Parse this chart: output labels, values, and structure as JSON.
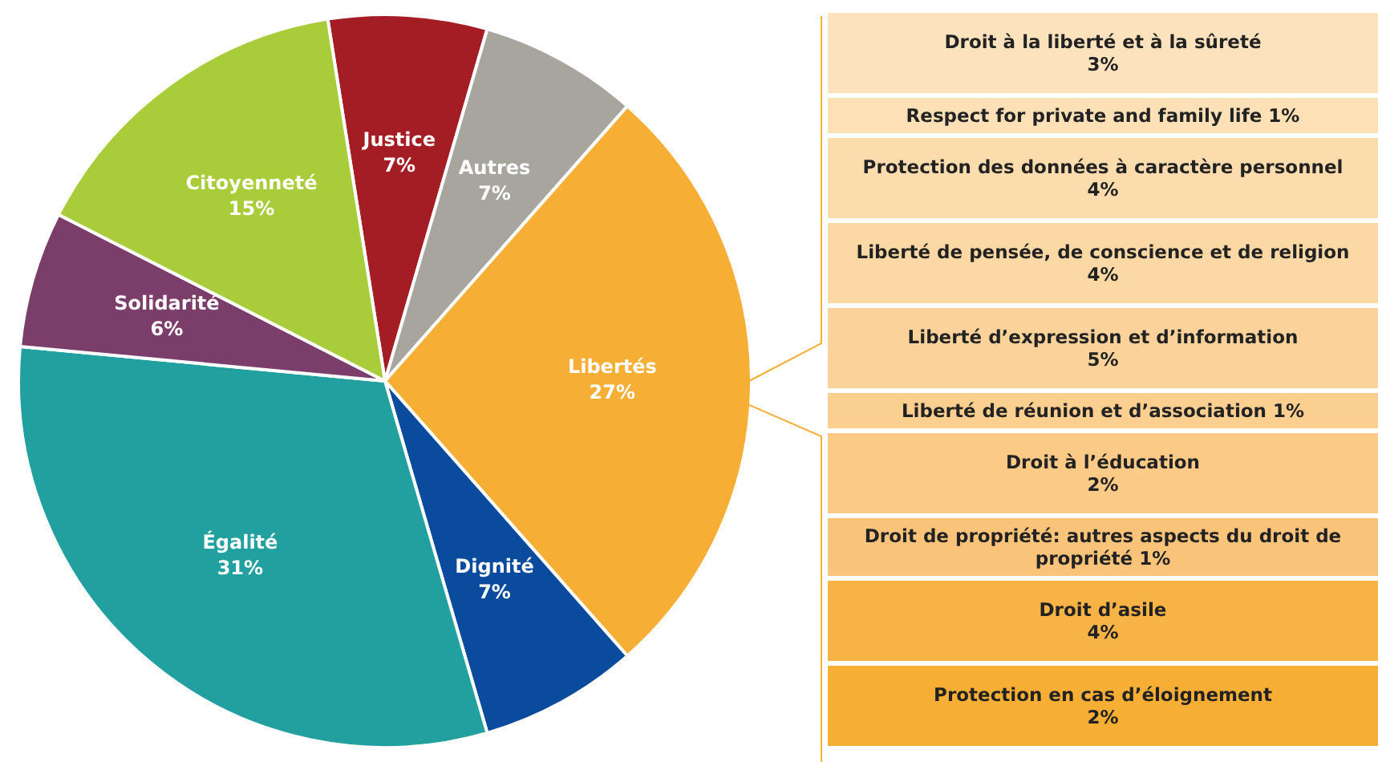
{
  "chart_data": [
    {
      "type": "pie",
      "categories": [
        "Justice",
        "Autres",
        "Libertés",
        "Dignité",
        "Égalité",
        "Solidarité",
        "Citoyenneté"
      ],
      "values": [
        7,
        7,
        27,
        7,
        31,
        6,
        15
      ],
      "colors": [
        "#a51d24",
        "#a8a59f",
        "#f7ae34",
        "#0a4b9e",
        "#22a09f",
        "#7b3d6a",
        "#a9cc3a"
      ],
      "value_labels": [
        "7%",
        "7%",
        "27%",
        "7%",
        "31%",
        "6%",
        "15%"
      ]
    },
    {
      "type": "other",
      "categories": [
        "Droit à la liberté et à la sûreté",
        "Respect for private and family life",
        "Protection des données à caractère personnel",
        "Liberté de pensée, de conscience et de religion",
        "Liberté d’expression et d’information",
        "Liberté de réunion et d’association",
        "Droit à l’éducation",
        "Droit de propriété: autres aspects du droit de propriété",
        "Droit d’asile",
        "Protection en cas d’éloignement"
      ],
      "values": [
        3,
        1,
        4,
        4,
        5,
        1,
        2,
        1,
        4,
        2
      ],
      "value_labels": [
        "3%",
        "1%",
        "4%",
        "4%",
        "5%",
        "1%",
        "2%",
        "1%",
        "4%",
        "2%"
      ],
      "colors": [
        "#fde3bd",
        "#fde0b6",
        "#fcdcad",
        "#fcd8a4",
        "#fbd39a",
        "#fbcf90",
        "#fbca86",
        "#f9c47a",
        "#f8b346",
        "#f7ae34"
      ]
    }
  ]
}
